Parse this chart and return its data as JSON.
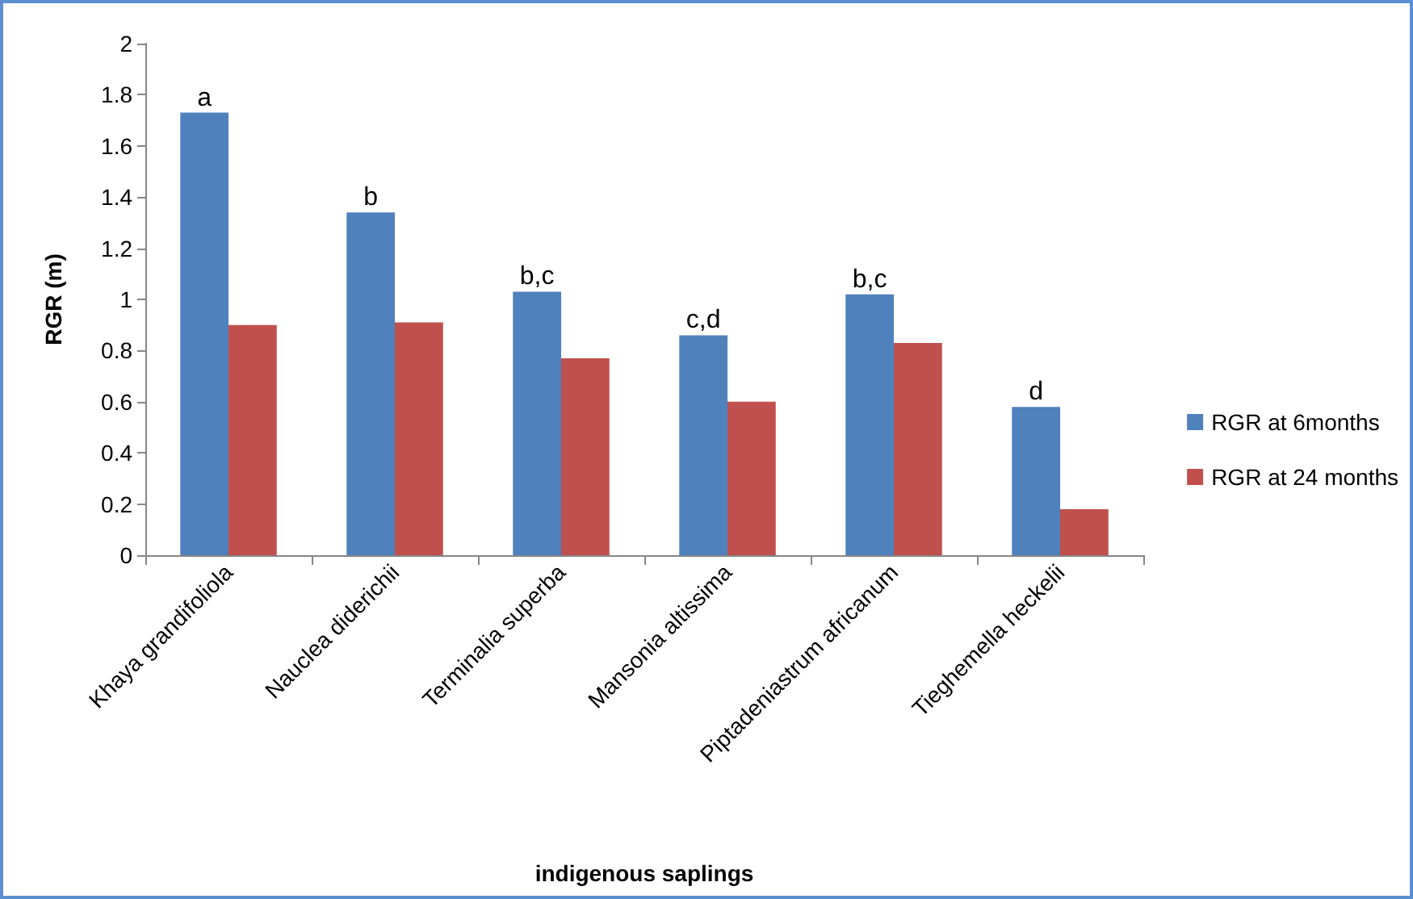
{
  "chart_data": {
    "type": "bar",
    "xlabel": "indigenous saplings",
    "ylabel": "RGR (m)",
    "categories": [
      "Khaya grandifoliola",
      "Nauclea diderichii",
      "Terminalia superba",
      "Mansonia altissima",
      "Piptadeniastrum africanum",
      "Tieghemella heckelii"
    ],
    "series": [
      {
        "name": "RGR at 6months",
        "color": "#4f81bd",
        "values": [
          1.73,
          1.34,
          1.03,
          0.86,
          1.02,
          0.58
        ]
      },
      {
        "name": "RGR at 24 months",
        "color": "#c0504d",
        "values": [
          0.9,
          0.91,
          0.77,
          0.6,
          0.83,
          0.18
        ]
      }
    ],
    "ylim": [
      0,
      2
    ],
    "yticks": [
      0,
      0.2,
      0.4,
      0.6,
      0.8,
      1,
      1.2,
      1.4,
      1.6,
      1.8,
      2
    ],
    "annotations": [
      {
        "text": "a",
        "x": "Khaya grandifoliola",
        "y": 1.73
      },
      {
        "text": "b",
        "x": "Nauclea diderichii",
        "y": 1.34
      },
      {
        "text": "b,c",
        "x": "Terminalia superba",
        "y": 1.03
      },
      {
        "text": "c,d",
        "x": "Mansonia altissima",
        "y": 0.86
      },
      {
        "text": "b,c",
        "x": "Piptadeniastrum africanum",
        "y": 1.02
      },
      {
        "text": "d",
        "x": "Tieghemella heckelii",
        "y": 0.58
      }
    ],
    "grid": false,
    "legend": "right"
  }
}
